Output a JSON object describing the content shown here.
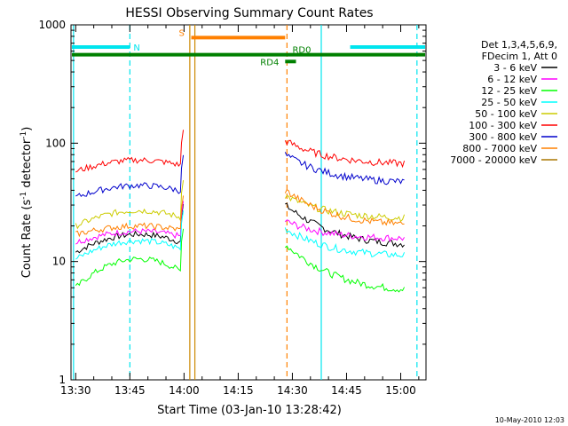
{
  "chart_data": {
    "type": "line",
    "title": "HESSI Observing Summary Count Rates",
    "xlabel": "Start Time (03-Jan-10 13:28:42)",
    "ylabel_main": "Count Rate (s",
    "ylabel_sup1": "-1",
    "ylabel_mid": " detector",
    "ylabel_sup2": "-1",
    "ylabel_end": ")",
    "yscale": "log",
    "ylim": [
      1,
      1000
    ],
    "xlim_minutes": [
      -1.3,
      97
    ],
    "x_ticks": [
      {
        "m": 0,
        "label": "13:30"
      },
      {
        "m": 15,
        "label": "13:45"
      },
      {
        "m": 30,
        "label": "14:00"
      },
      {
        "m": 45,
        "label": "14:15"
      },
      {
        "m": 60,
        "label": "14:30"
      },
      {
        "m": 75,
        "label": "14:45"
      },
      {
        "m": 90,
        "label": "15:00"
      }
    ],
    "y_ticks": [
      {
        "v": 1,
        "label": "1"
      },
      {
        "v": 10,
        "label": "10"
      },
      {
        "v": 100,
        "label": "100"
      },
      {
        "v": 1000,
        "label": "1000"
      }
    ],
    "legend_header": [
      "Det 1,3,4,5,6,9,",
      "FDecim 1, Att 0"
    ],
    "series": [
      {
        "name": "3 - 6 keV",
        "color": "#000000",
        "pre": [
          12.0,
          17.0
        ],
        "post": [
          30,
          13.5
        ]
      },
      {
        "name": "6 - 12 keV",
        "color": "#ff00ff",
        "pre": [
          14.5,
          18.0
        ],
        "post": [
          22,
          15.5
        ]
      },
      {
        "name": "12 - 25 keV",
        "color": "#00ff00",
        "pre": [
          6.0,
          10.5
        ],
        "post": [
          14,
          5.5
        ]
      },
      {
        "name": "25 - 50 keV",
        "color": "#00ffff",
        "pre": [
          10.5,
          15.0
        ],
        "post": [
          19,
          11.0
        ]
      },
      {
        "name": "50 - 100 keV",
        "color": "#cccc00",
        "pre": [
          20.0,
          27.0
        ],
        "post": [
          36,
          23.0
        ]
      },
      {
        "name": "100 - 300 keV",
        "color": "#ff0000",
        "pre": [
          58.0,
          72.0
        ],
        "post": [
          105,
          66.0
        ]
      },
      {
        "name": "300 - 800 keV",
        "color": "#0000cc",
        "pre": [
          35.0,
          44.0
        ],
        "post": [
          80,
          46.0
        ]
      },
      {
        "name": "800 - 7000 keV",
        "color": "#ff8000",
        "pre": [
          17.0,
          20.0
        ],
        "post": [
          40,
          20.0
        ]
      },
      {
        "name": "7000 - 20000 keV",
        "color": "#aa7700",
        "pre": [
          null,
          null
        ],
        "post": [
          null,
          null
        ]
      }
    ],
    "segments": {
      "pre": [
        0,
        29
      ],
      "post": [
        58,
        91
      ]
    },
    "flags": [
      {
        "label": "N",
        "color": "#00e5ee",
        "y": 650,
        "x0": -1.3,
        "x1": 15
      },
      {
        "label": "N",
        "color": "#00e5ee",
        "y": 650,
        "x0": 76,
        "x1": 97
      },
      {
        "label": "S",
        "color": "#ff8000",
        "y": 780,
        "x0": 32,
        "x1": 58
      },
      {
        "label": "RD0",
        "color": "#008000",
        "y": 560,
        "x0": -1.3,
        "x1": 97
      },
      {
        "label": "RD4",
        "color": "#008000",
        "y": 490,
        "x0": 58,
        "x1": 61
      }
    ],
    "vertical_lines": [
      {
        "m": -0.6,
        "color": "#00e5ee",
        "dashed": false
      },
      {
        "m": 15,
        "color": "#00e5ee",
        "dashed": true
      },
      {
        "m": 31.6,
        "color": "#cc8800",
        "dashed": false
      },
      {
        "m": 33.0,
        "color": "#cc8800",
        "dashed": false
      },
      {
        "m": 58.5,
        "color": "#ff8000",
        "dashed": true
      },
      {
        "m": 68,
        "color": "#00e5ee",
        "dashed": false
      },
      {
        "m": 94.5,
        "color": "#00e5ee",
        "dashed": true
      }
    ],
    "timestamp": "10-May-2010 12:03"
  }
}
